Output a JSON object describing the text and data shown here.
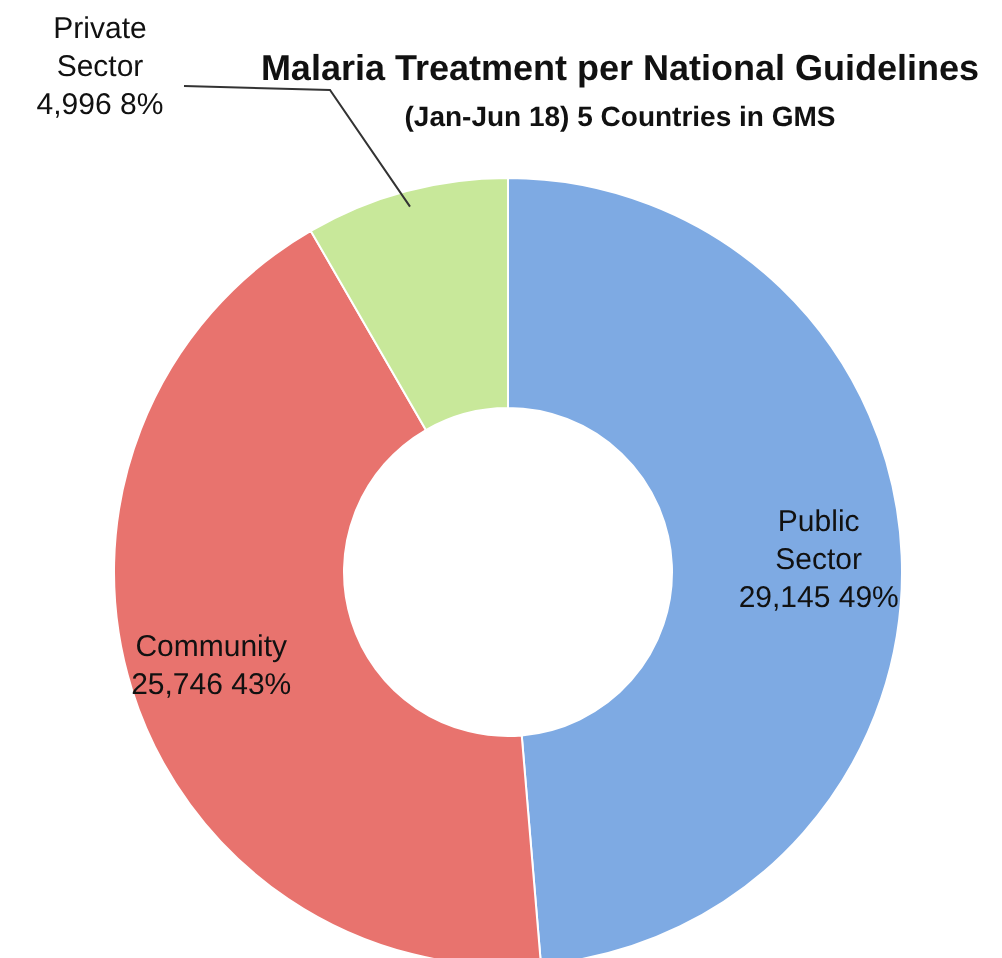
{
  "chart_data": {
    "type": "donut",
    "title": "Malaria Treatment per National Guidelines",
    "subtitle": "(Jan-Jun 18) 5 Countries in GMS",
    "categories": [
      "Public Sector",
      "Community",
      "Private Sector"
    ],
    "values": [
      29145,
      25746,
      4996
    ],
    "colors": [
      "#7eaae3",
      "#e8736e",
      "#c8e89a"
    ],
    "value_labels": [
      "29,145 49%",
      "25,746 43%",
      "4,996 8%"
    ]
  }
}
